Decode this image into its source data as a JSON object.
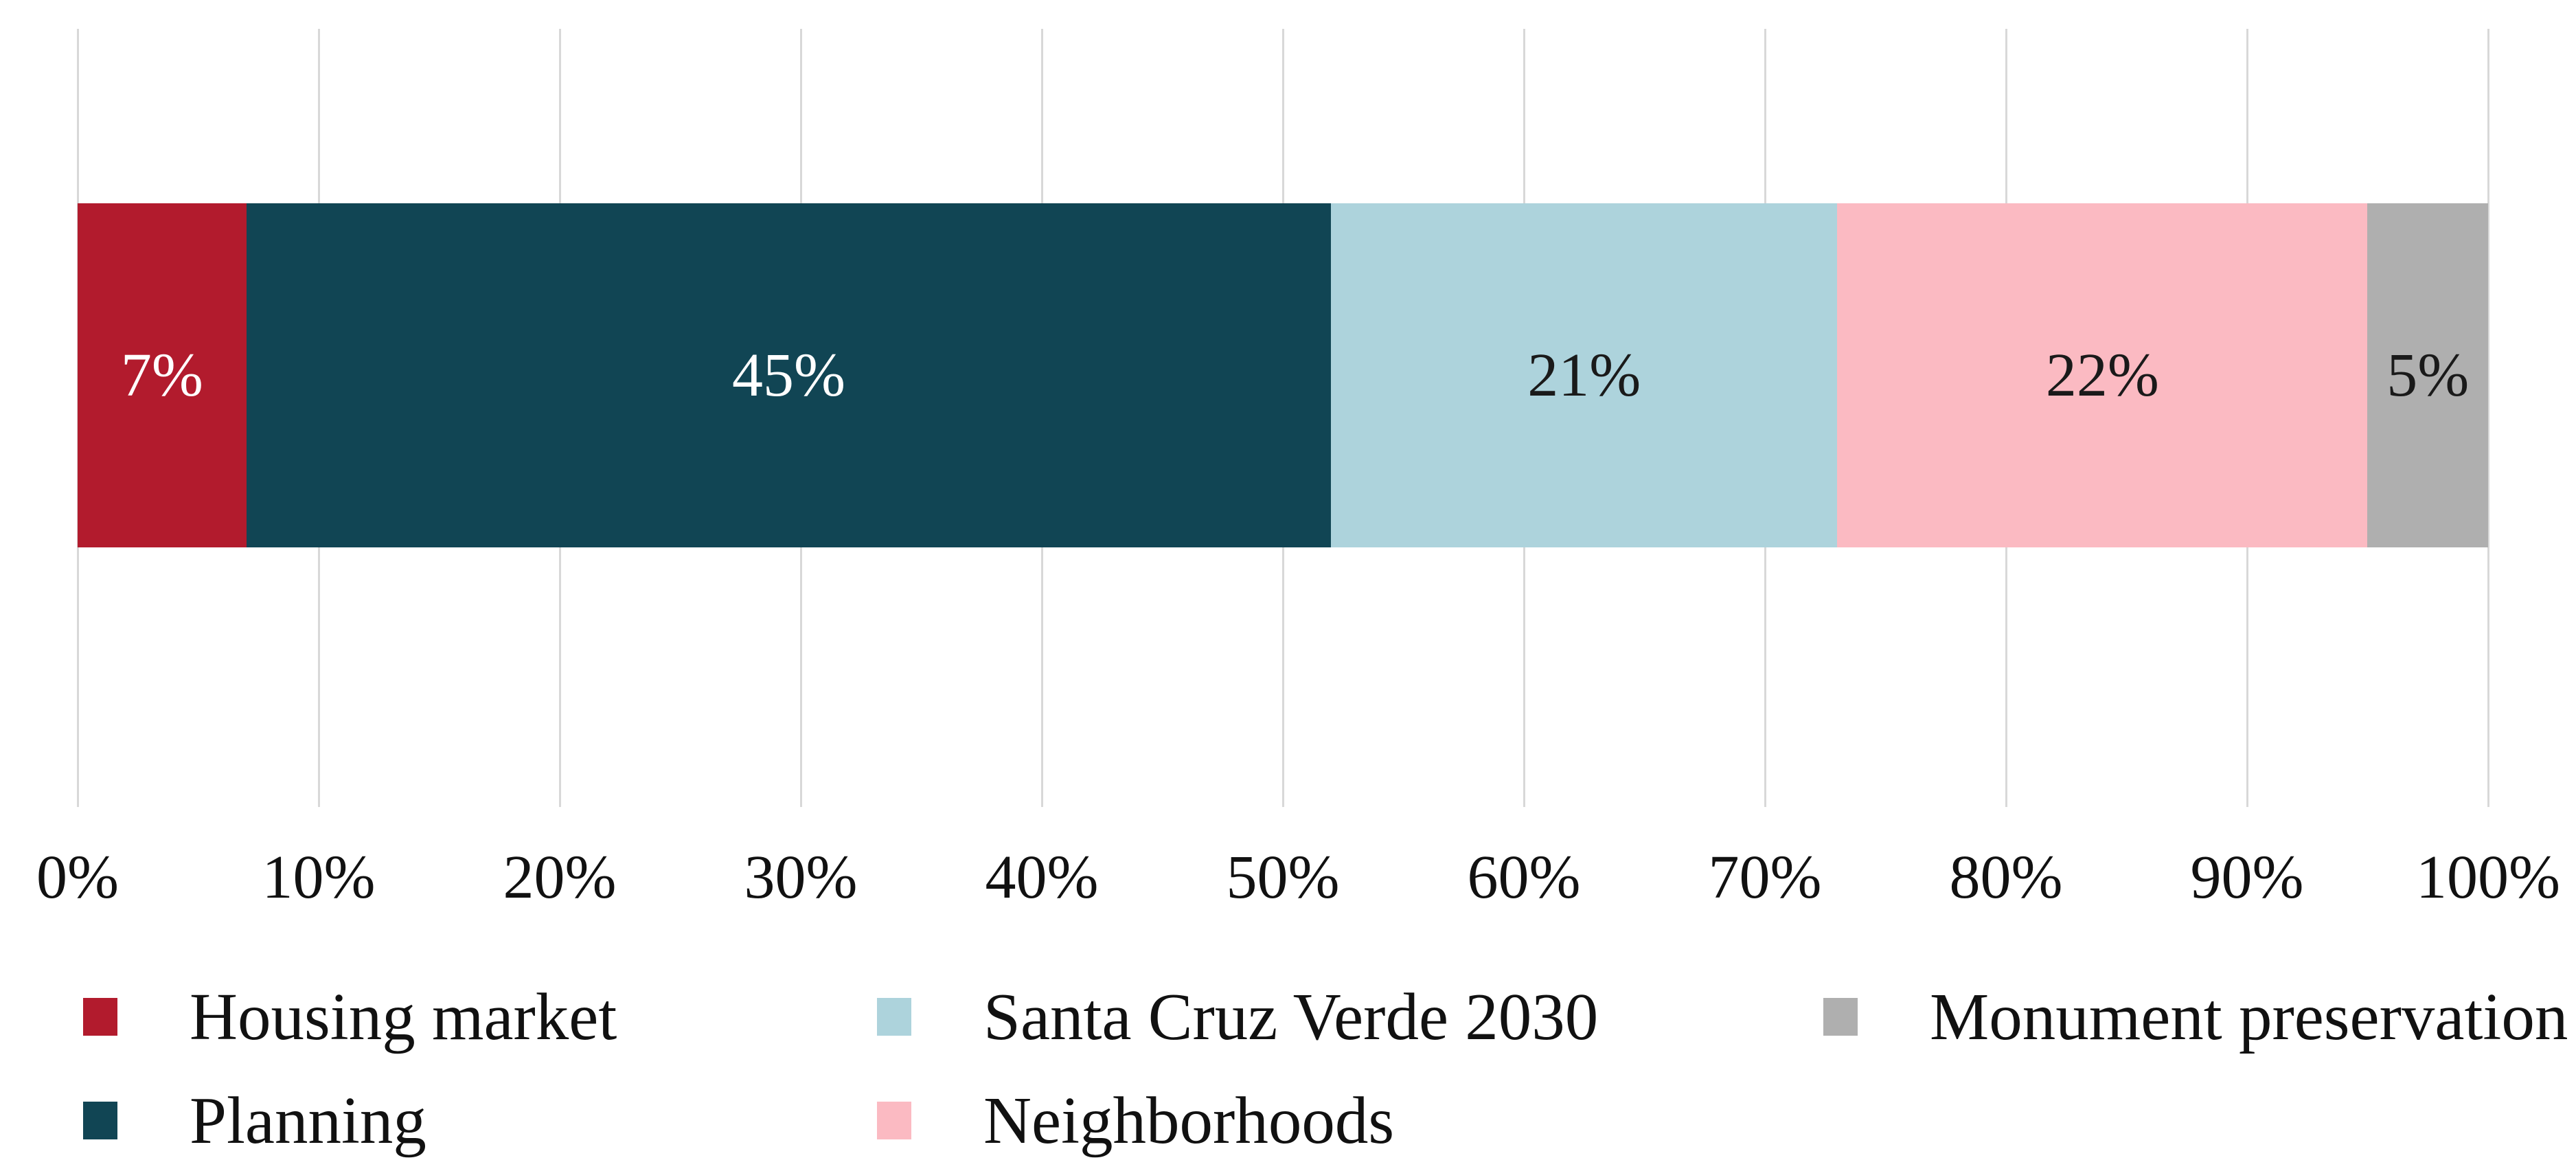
{
  "chart_data": {
    "type": "bar",
    "variant": "horizontal-stacked-100pct",
    "title": "",
    "categories": [
      "Housing market",
      "Planning",
      "Santa Cruz Verde 2030",
      "Neighborhoods",
      "Monument preservation"
    ],
    "series": [
      {
        "name": "Housing market",
        "value": 7,
        "label": "7%",
        "color": "#b21b2d",
        "label_color": "#ffffff"
      },
      {
        "name": "Planning",
        "value": 45,
        "label": "45%",
        "color": "#114554",
        "label_color": "#ffffff"
      },
      {
        "name": "Santa Cruz Verde 2030",
        "value": 21,
        "label": "21%",
        "color": "#add3dc",
        "label_color": "#1a1a1a"
      },
      {
        "name": "Neighborhoods",
        "value": 22,
        "label": "22%",
        "color": "#fbbac2",
        "label_color": "#1a1a1a"
      },
      {
        "name": "Monument preservation",
        "value": 5,
        "label": "5%",
        "color": "#afafaf",
        "label_color": "#1a1a1a"
      }
    ],
    "x_axis": {
      "range": [
        0,
        100
      ],
      "unit": "percent",
      "ticks": [
        "0%",
        "10%",
        "20%",
        "30%",
        "40%",
        "50%",
        "60%",
        "70%",
        "80%",
        "90%",
        "100%"
      ],
      "grid": true,
      "gridline_color": "#d8d8d8"
    },
    "legend": {
      "position": "bottom",
      "columns": 3,
      "rows": 2,
      "items": [
        {
          "label": "Housing market",
          "color": "#b21b2d"
        },
        {
          "label": "Planning",
          "color": "#114554"
        },
        {
          "label": "Santa Cruz Verde 2030",
          "color": "#add3dc"
        },
        {
          "label": "Neighborhoods",
          "color": "#fbbac2"
        },
        {
          "label": "Monument preservation",
          "color": "#afafaf"
        }
      ]
    }
  }
}
